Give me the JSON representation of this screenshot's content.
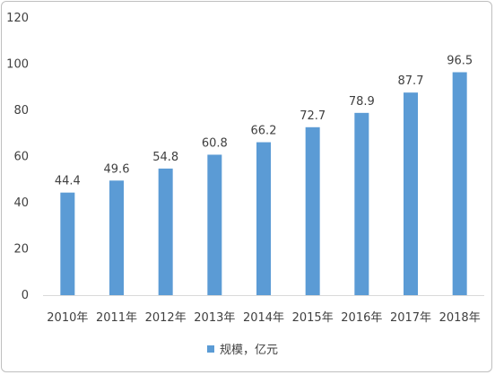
{
  "chart_data": {
    "type": "bar",
    "categories": [
      "2010年",
      "2011年",
      "2012年",
      "2013年",
      "2014年",
      "2015年",
      "2016年",
      "2017年",
      "2018年"
    ],
    "series": [
      {
        "name": "规模，亿元",
        "values": [
          44.4,
          49.6,
          54.8,
          60.8,
          66.2,
          72.7,
          78.9,
          87.7,
          96.5
        ]
      }
    ],
    "data_labels": [
      "44.4",
      "49.6",
      "54.8",
      "60.8",
      "66.2",
      "72.7",
      "78.9",
      "87.7",
      "96.5"
    ],
    "y_ticks": [
      "0",
      "20",
      "40",
      "60",
      "80",
      "100",
      "120"
    ],
    "ylim": [
      0,
      120
    ],
    "grid": false,
    "legend_position": "bottom",
    "bar_color": "#5b9bd5",
    "axis_color": "#d9d9d9",
    "text_color": "#404040"
  }
}
